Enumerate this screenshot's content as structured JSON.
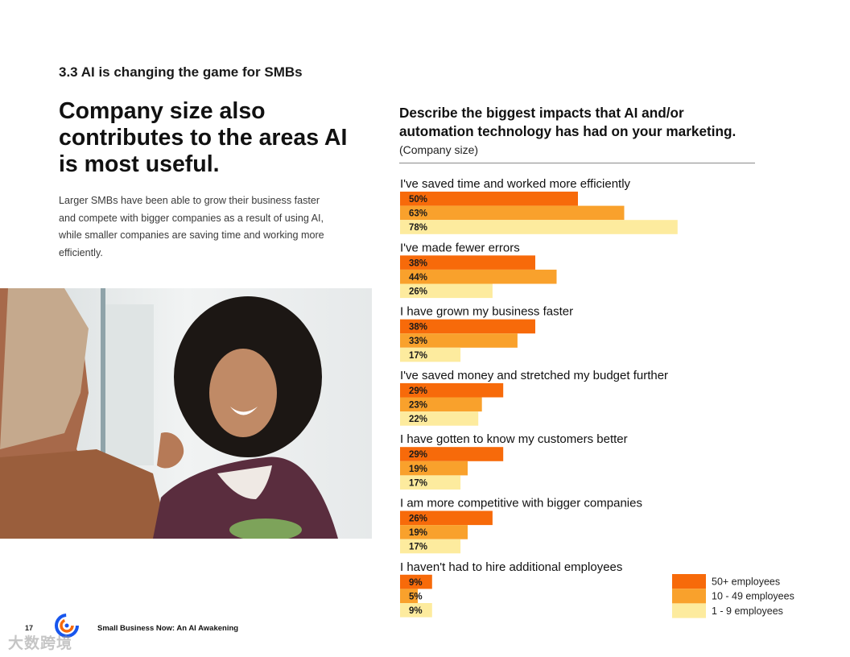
{
  "section": {
    "title": "3.3 AI is changing the game for SMBs"
  },
  "headline": "Company size also contributes to the areas AI is most useful.",
  "body_text": "Larger SMBs have been able to grow their business faster and compete with bigger companies as a result of using AI, while smaller companies are saving time and working more efficiently.",
  "photo": {
    "description_icon": "handshake-photo-icon"
  },
  "footer": {
    "page_number": "17",
    "publication_title": "Small Business Now: An AI Awakening",
    "logo_icon": "constant-contact-logo-icon"
  },
  "watermark": "大数跨境",
  "colors": {
    "large": "#F76A0A",
    "medium": "#F9A12C",
    "small": "#FDEB9E"
  },
  "chart_data": {
    "type": "bar",
    "orientation": "horizontal",
    "title": "Describe the biggest impacts that AI and/or automation technology has had on your marketing.",
    "subtitle": "(Company size)",
    "xlabel": "",
    "ylabel": "",
    "xlim": [
      0,
      100
    ],
    "value_suffix": "%",
    "legend_position": "bottom-right",
    "categories": [
      "I've saved time and worked more efficiently",
      "I've made fewer errors",
      "I have grown my business faster",
      "I've saved money and stretched my budget further",
      "I have gotten to know my customers better",
      "I am more competitive with bigger companies",
      "I haven't had to hire additional employees"
    ],
    "series": [
      {
        "name": "50+ employees",
        "color": "#F76A0A",
        "values": [
          50,
          38,
          38,
          29,
          29,
          26,
          9
        ]
      },
      {
        "name": "10 - 49 employees",
        "color": "#F9A12C",
        "values": [
          63,
          44,
          33,
          23,
          19,
          19,
          5
        ]
      },
      {
        "name": "1 - 9 employees",
        "color": "#FDEB9E",
        "values": [
          78,
          26,
          17,
          22,
          17,
          17,
          9
        ]
      }
    ]
  }
}
